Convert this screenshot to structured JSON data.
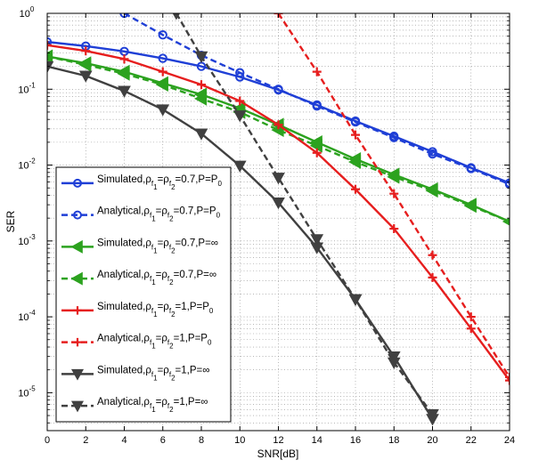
{
  "chart_data": {
    "type": "line",
    "xlabel": "SNR[dB]",
    "ylabel": "SER",
    "xlim": [
      0,
      24
    ],
    "ylim_log10": [
      -5.5,
      0
    ],
    "x_ticks": [
      0,
      2,
      4,
      6,
      8,
      10,
      12,
      14,
      16,
      18,
      20,
      22,
      24
    ],
    "y_ticks": [
      {
        "exp": 0,
        "base": "10",
        "sup": "0"
      },
      {
        "exp": -1,
        "base": "10",
        "sup": "-1"
      },
      {
        "exp": -2,
        "base": "10",
        "sup": "-2"
      },
      {
        "exp": -3,
        "base": "10",
        "sup": "-3"
      },
      {
        "exp": -4,
        "base": "10",
        "sup": "-4"
      },
      {
        "exp": -5,
        "base": "10",
        "sup": "-5"
      }
    ],
    "grid": true,
    "legend_position": "bottom-left",
    "series": [
      {
        "name": "Simulated,ρf1=ρf2=0.7,P=P0",
        "legend": {
          "a": "Simulated,ρ",
          "s1": "f",
          "ss1": "1",
          "b": "=ρ",
          "s2": "f",
          "ss2": "2",
          "c": "=0.7,P=P",
          "tail_sub": "0",
          "tail": ""
        },
        "color": "#1f3fd6",
        "dashed": false,
        "marker": "circle",
        "x": [
          0,
          2,
          4,
          6,
          8,
          10,
          12,
          14,
          16,
          18,
          20,
          22,
          24
        ],
        "y": [
          0.42,
          0.37,
          0.315,
          0.255,
          0.2,
          0.145,
          0.098,
          0.062,
          0.038,
          0.024,
          0.015,
          0.0092,
          0.0058
        ]
      },
      {
        "name": "Analytical,ρf1=ρf2=0.7,P=P0",
        "legend": {
          "a": "Analytical,ρ",
          "s1": "f",
          "ss1": "1",
          "b": "=ρ",
          "s2": "f",
          "ss2": "2",
          "c": "=0.7,P=P",
          "tail_sub": "0",
          "tail": ""
        },
        "color": "#1f3fd6",
        "dashed": true,
        "marker": "circle",
        "x": [
          4,
          6,
          8,
          10,
          12,
          14,
          16,
          18,
          20,
          22,
          24
        ],
        "y": [
          1.0,
          0.52,
          0.28,
          0.165,
          0.1,
          0.06,
          0.037,
          0.023,
          0.014,
          0.009,
          0.0056
        ]
      },
      {
        "name": "Simulated,ρf1=ρf2=0.7,P=∞",
        "legend": {
          "a": "Simulated,ρ",
          "s1": "f",
          "ss1": "1",
          "b": "=ρ",
          "s2": "f",
          "ss2": "2",
          "c": "=0.7,P=∞",
          "tail_sub": "",
          "tail": ""
        },
        "color": "#2ca21f",
        "dashed": false,
        "marker": "triangle-left",
        "x": [
          0,
          2,
          4,
          6,
          8,
          10,
          12,
          14,
          16,
          18,
          20,
          22,
          24
        ],
        "y": [
          0.27,
          0.22,
          0.17,
          0.12,
          0.085,
          0.056,
          0.034,
          0.02,
          0.012,
          0.0075,
          0.0048,
          0.003,
          0.0018
        ]
      },
      {
        "name": "Analytical,ρf1=ρf2=0.7,P=∞",
        "legend": {
          "a": "Analytical,ρ",
          "s1": "f",
          "ss1": "1",
          "b": "=ρ",
          "s2": "f",
          "ss2": "2",
          "c": "=0.7,P=∞",
          "tail_sub": "",
          "tail": ""
        },
        "color": "#2ca21f",
        "dashed": true,
        "marker": "triangle-left",
        "x": [
          0,
          2,
          4,
          6,
          8,
          10,
          12,
          14,
          16,
          18,
          20,
          22,
          24
        ],
        "y": [
          0.27,
          0.21,
          0.16,
          0.115,
          0.075,
          0.05,
          0.029,
          0.018,
          0.011,
          0.007,
          0.0046,
          0.0029,
          0.0018
        ]
      },
      {
        "name": "Simulated,ρf1=ρf2=1,P=P0",
        "legend": {
          "a": "Simulated,ρ",
          "s1": "f",
          "ss1": "1",
          "b": "=ρ",
          "s2": "f",
          "ss2": "2",
          "c": "=1,P=P",
          "tail_sub": "0",
          "tail": ""
        },
        "color": "#e61e1e",
        "dashed": false,
        "marker": "plus",
        "x": [
          0,
          2,
          4,
          6,
          8,
          10,
          12,
          14,
          16,
          18,
          20,
          22,
          24
        ],
        "y": [
          0.38,
          0.32,
          0.25,
          0.17,
          0.115,
          0.07,
          0.034,
          0.0145,
          0.0048,
          0.00145,
          0.00033,
          7e-05,
          1.45e-05
        ]
      },
      {
        "name": "Analytical,ρf1=ρf2=1,P=P0",
        "legend": {
          "a": "Analytical,ρ",
          "s1": "f",
          "ss1": "1",
          "b": "=ρ",
          "s2": "f",
          "ss2": "2",
          "c": "=1,P=P",
          "tail_sub": "0",
          "tail": ""
        },
        "color": "#e61e1e",
        "dashed": true,
        "marker": "plus",
        "x": [
          12,
          14,
          16,
          18,
          20,
          22,
          24
        ],
        "y": [
          1.0,
          0.17,
          0.025,
          0.0042,
          0.00065,
          0.0001,
          1.6e-05
        ]
      },
      {
        "name": "Simulated,ρf1=ρf2=1,P=∞",
        "legend": {
          "a": "Simulated,ρ",
          "s1": "f",
          "ss1": "1",
          "b": "=ρ",
          "s2": "f",
          "ss2": "2",
          "c": "=1,P=∞",
          "tail_sub": "",
          "tail": ""
        },
        "color": "#404040",
        "dashed": false,
        "marker": "triangle-down",
        "x": [
          0,
          2,
          4,
          6,
          8,
          10,
          12,
          14,
          16,
          18,
          20
        ],
        "y": [
          0.2,
          0.15,
          0.095,
          0.054,
          0.026,
          0.0098,
          0.0032,
          0.00082,
          0.00017,
          3e-05,
          4.5e-06
        ]
      },
      {
        "name": "Analytical,ρf1=ρf2=1,P=∞",
        "legend": {
          "a": "Analytical,ρ",
          "s1": "f",
          "ss1": "1",
          "b": "=ρ",
          "s2": "f",
          "ss2": "2",
          "c": "=1,P=∞",
          "tail_sub": "",
          "tail": ""
        },
        "color": "#404040",
        "dashed": true,
        "marker": "triangle-down",
        "x": [
          6.7,
          8,
          10,
          12,
          14,
          16,
          18,
          20
        ],
        "y": [
          1.0,
          0.27,
          0.045,
          0.0068,
          0.00105,
          0.00017,
          2.5e-05,
          5.2e-06
        ]
      }
    ]
  }
}
